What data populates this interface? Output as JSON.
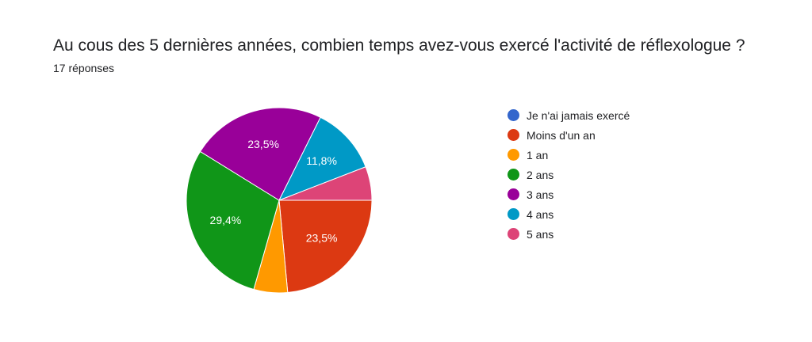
{
  "header": {
    "title": "Au cous des 5 dernières années, combien temps avez-vous exercé l'activité de réflexologue ?",
    "responses": "17 réponses"
  },
  "chart_data": {
    "type": "pie",
    "total": 17,
    "slices": [
      {
        "label": "Je n'ai jamais exercé",
        "count": 0,
        "percent": 0,
        "display": "",
        "color": "#3366cc"
      },
      {
        "label": "Moins d'un an",
        "count": 4,
        "percent": 23.5,
        "display": "23,5%",
        "color": "#dc3912"
      },
      {
        "label": "1 an",
        "count": 1,
        "percent": 5.9,
        "display": "",
        "color": "#ff9900"
      },
      {
        "label": "2 ans",
        "count": 5,
        "percent": 29.4,
        "display": "29,4%",
        "color": "#109618"
      },
      {
        "label": "3 ans",
        "count": 4,
        "percent": 23.5,
        "display": "23,5%",
        "color": "#990099"
      },
      {
        "label": "4 ans",
        "count": 2,
        "percent": 11.8,
        "display": "11,8%",
        "color": "#0099c6"
      },
      {
        "label": "5 ans",
        "count": 1,
        "percent": 5.9,
        "display": "",
        "color": "#dd4477"
      }
    ],
    "legend_position": "right"
  }
}
